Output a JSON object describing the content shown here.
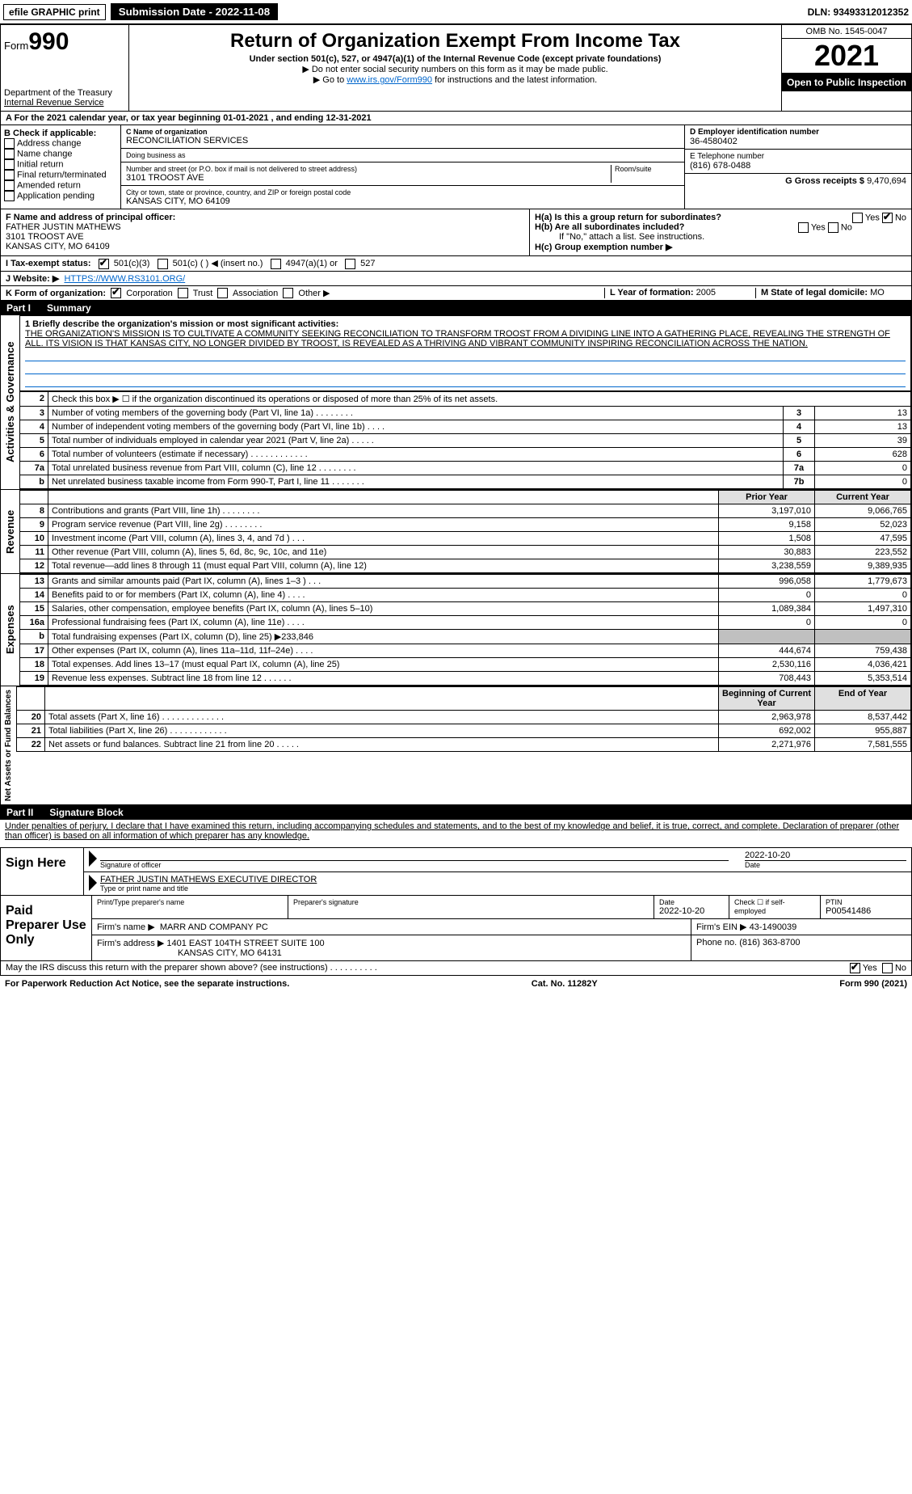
{
  "topbar": {
    "efile": "efile GRAPHIC print",
    "submission": "Submission Date - 2022-11-08",
    "dln": "DLN: 93493312012352"
  },
  "header": {
    "form_word": "Form",
    "form_num": "990",
    "dept": "Department of the Treasury",
    "irs": "Internal Revenue Service",
    "title": "Return of Organization Exempt From Income Tax",
    "subtitle": "Under section 501(c), 527, or 4947(a)(1) of the Internal Revenue Code (except private foundations)",
    "note1": "▶ Do not enter social security numbers on this form as it may be made public.",
    "note2_pre": "▶ Go to ",
    "note2_link": "www.irs.gov/Form990",
    "note2_post": " for instructions and the latest information.",
    "omb": "OMB No. 1545-0047",
    "year": "2021",
    "inspection": "Open to Public Inspection"
  },
  "a_row": {
    "text": "A For the 2021 calendar year, or tax year beginning 01-01-2021    , and ending 12-31-2021"
  },
  "b": {
    "title": "B Check if applicable:",
    "opts": [
      "Address change",
      "Name change",
      "Initial return",
      "Final return/terminated",
      "Amended return",
      "Application pending"
    ]
  },
  "c": {
    "label": "C Name of organization",
    "name": "RECONCILIATION SERVICES",
    "dba_label": "Doing business as",
    "dba": "",
    "street_label": "Number and street (or P.O. box if mail is not delivered to street address)",
    "room_label": "Room/suite",
    "street": "3101 TROOST AVE",
    "city_label": "City or town, state or province, country, and ZIP or foreign postal code",
    "city": "KANSAS CITY, MO  64109"
  },
  "d": {
    "label": "D Employer identification number",
    "val": "36-4580402"
  },
  "e": {
    "label": "E Telephone number",
    "val": "(816) 678-0488"
  },
  "g": {
    "label": "G Gross receipts $",
    "val": "9,470,694"
  },
  "f": {
    "label": "F  Name and address of principal officer:",
    "line1": "FATHER JUSTIN MATHEWS",
    "line2": "3101 TROOST AVE",
    "line3": "KANSAS CITY, MO  64109"
  },
  "h": {
    "a": "H(a)  Is this a group return for subordinates?",
    "b": "H(b)  Are all subordinates included?",
    "b_note": "If \"No,\" attach a list. See instructions.",
    "c": "H(c)  Group exemption number ▶",
    "yes": "Yes",
    "no": "No"
  },
  "i": {
    "label": "I   Tax-exempt status:",
    "o1": "501(c)(3)",
    "o2": "501(c) (   ) ◀ (insert no.)",
    "o3": "4947(a)(1) or",
    "o4": "527"
  },
  "j": {
    "label": "J   Website: ▶",
    "val": "HTTPS://WWW.RS3101.ORG/"
  },
  "k": {
    "label": "K Form of organization:",
    "o1": "Corporation",
    "o2": "Trust",
    "o3": "Association",
    "o4": "Other ▶"
  },
  "l": {
    "label": "L Year of formation:",
    "val": "2005"
  },
  "m": {
    "label": "M State of legal domicile:",
    "val": "MO"
  },
  "part1": {
    "num": "Part I",
    "title": "Summary"
  },
  "mission": {
    "q": "1  Briefly describe the organization's mission or most significant activities:",
    "text": "THE ORGANIZATION'S MISSION IS TO CULTIVATE A COMMUNITY SEEKING RECONCILIATION TO TRANSFORM TROOST FROM A DIVIDING LINE INTO A GATHERING PLACE, REVEALING THE STRENGTH OF ALL. ITS VISION IS THAT KANSAS CITY, NO LONGER DIVIDED BY TROOST, IS REVEALED AS A THRIVING AND VIBRANT COMMUNITY INSPIRING RECONCILIATION ACROSS THE NATION."
  },
  "gov_label": "Activities & Governance",
  "rev_label": "Revenue",
  "exp_label": "Expenses",
  "na_label": "Net Assets or Fund Balances",
  "gov_rows": [
    {
      "n": "2",
      "d": "Check this box ▶ ☐  if the organization discontinued its operations or disposed of more than 25% of its net assets."
    },
    {
      "n": "3",
      "d": "Number of voting members of the governing body (Part VI, line 1a)   .    .    .    .    .    .    .    .",
      "b": "3",
      "v": "13"
    },
    {
      "n": "4",
      "d": "Number of independent voting members of the governing body (Part VI, line 1b)   .    .    .    .",
      "b": "4",
      "v": "13"
    },
    {
      "n": "5",
      "d": "Total number of individuals employed in calendar year 2021 (Part V, line 2a)   .    .    .    .    .",
      "b": "5",
      "v": "39"
    },
    {
      "n": "6",
      "d": "Total number of volunteers (estimate if necessary)   .    .    .    .    .    .    .    .    .    .    .    .",
      "b": "6",
      "v": "628"
    },
    {
      "n": "7a",
      "d": "Total unrelated business revenue from Part VIII, column (C), line 12   .    .    .    .    .    .    .    .",
      "b": "7a",
      "v": "0"
    },
    {
      "n": "b",
      "d": "Net unrelated business taxable income from Form 990-T, Part I, line 11   .    .    .    .    .    .    .",
      "b": "7b",
      "v": "0"
    }
  ],
  "py_head": "Prior Year",
  "cy_head": "Current Year",
  "rev_rows": [
    {
      "n": "8",
      "d": "Contributions and grants (Part VIII, line 1h)   .    .    .    .    .    .    .    .",
      "py": "3,197,010",
      "cy": "9,066,765"
    },
    {
      "n": "9",
      "d": "Program service revenue (Part VIII, line 2g)   .    .    .    .    .    .    .    .",
      "py": "9,158",
      "cy": "52,023"
    },
    {
      "n": "10",
      "d": "Investment income (Part VIII, column (A), lines 3, 4, and 7d )   .    .    .",
      "py": "1,508",
      "cy": "47,595"
    },
    {
      "n": "11",
      "d": "Other revenue (Part VIII, column (A), lines 5, 6d, 8c, 9c, 10c, and 11e)",
      "py": "30,883",
      "cy": "223,552"
    },
    {
      "n": "12",
      "d": "Total revenue—add lines 8 through 11 (must equal Part VIII, column (A), line 12)",
      "py": "3,238,559",
      "cy": "9,389,935"
    }
  ],
  "exp_rows": [
    {
      "n": "13",
      "d": "Grants and similar amounts paid (Part IX, column (A), lines 1–3 )   .    .    .",
      "py": "996,058",
      "cy": "1,779,673"
    },
    {
      "n": "14",
      "d": "Benefits paid to or for members (Part IX, column (A), line 4)   .    .    .    .",
      "py": "0",
      "cy": "0"
    },
    {
      "n": "15",
      "d": "Salaries, other compensation, employee benefits (Part IX, column (A), lines 5–10)",
      "py": "1,089,384",
      "cy": "1,497,310"
    },
    {
      "n": "16a",
      "d": "Professional fundraising fees (Part IX, column (A), line 11e)   .    .    .    .",
      "py": "0",
      "cy": "0"
    },
    {
      "n": "b",
      "d": "Total fundraising expenses (Part IX, column (D), line 25) ▶233,846",
      "py": "",
      "cy": "",
      "grey": true
    },
    {
      "n": "17",
      "d": "Other expenses (Part IX, column (A), lines 11a–11d, 11f–24e)   .    .    .    .",
      "py": "444,674",
      "cy": "759,438"
    },
    {
      "n": "18",
      "d": "Total expenses. Add lines 13–17 (must equal Part IX, column (A), line 25)",
      "py": "2,530,116",
      "cy": "4,036,421"
    },
    {
      "n": "19",
      "d": "Revenue less expenses. Subtract line 18 from line 12   .    .    .    .    .    .",
      "py": "708,443",
      "cy": "5,353,514"
    }
  ],
  "by_head": "Beginning of Current Year",
  "ey_head": "End of Year",
  "na_rows": [
    {
      "n": "20",
      "d": "Total assets (Part X, line 16)   .    .    .    .    .    .    .    .    .    .    .    .    .",
      "py": "2,963,978",
      "cy": "8,537,442"
    },
    {
      "n": "21",
      "d": "Total liabilities (Part X, line 26)   .    .    .    .    .    .    .    .    .    .    .    .",
      "py": "692,002",
      "cy": "955,887"
    },
    {
      "n": "22",
      "d": "Net assets or fund balances. Subtract line 21 from line 20   .    .    .    .    .",
      "py": "2,271,976",
      "cy": "7,581,555"
    }
  ],
  "part2": {
    "num": "Part II",
    "title": "Signature Block"
  },
  "perjury": "Under penalties of perjury, I declare that I have examined this return, including accompanying schedules and statements, and to the best of my knowledge and belief, it is true, correct, and complete. Declaration of preparer (other than officer) is based on all information of which preparer has any knowledge.",
  "sign": {
    "label": "Sign Here",
    "sig_label": "Signature of officer",
    "date": "2022-10-20",
    "date_label": "Date",
    "name": "FATHER JUSTIN MATHEWS EXECUTIVE DIRECTOR",
    "name_label": "Type or print name and title"
  },
  "paid": {
    "label": "Paid Preparer Use Only",
    "h1": "Print/Type preparer's name",
    "h2": "Preparer's signature",
    "h3": "Date",
    "h3v": "2022-10-20",
    "h4": "Check ☐ if self-employed",
    "h5": "PTIN",
    "h5v": "P00541486",
    "firm_label": "Firm's name    ▶",
    "firm": "MARR AND COMPANY PC",
    "ein_label": "Firm's EIN ▶",
    "ein": "43-1490039",
    "addr_label": "Firm's address ▶",
    "addr1": "1401 EAST 104TH STREET SUITE 100",
    "addr2": "KANSAS CITY, MO  64131",
    "phone_label": "Phone no.",
    "phone": "(816) 363-8700"
  },
  "discuss": {
    "q": "May the IRS discuss this return with the preparer shown above? (see instructions)   .    .    .    .    .    .    .    .    .    .",
    "yes": "Yes",
    "no": "No"
  },
  "footer": {
    "left": "For Paperwork Reduction Act Notice, see the separate instructions.",
    "mid": "Cat. No. 11282Y",
    "right": "Form 990 (2021)"
  }
}
